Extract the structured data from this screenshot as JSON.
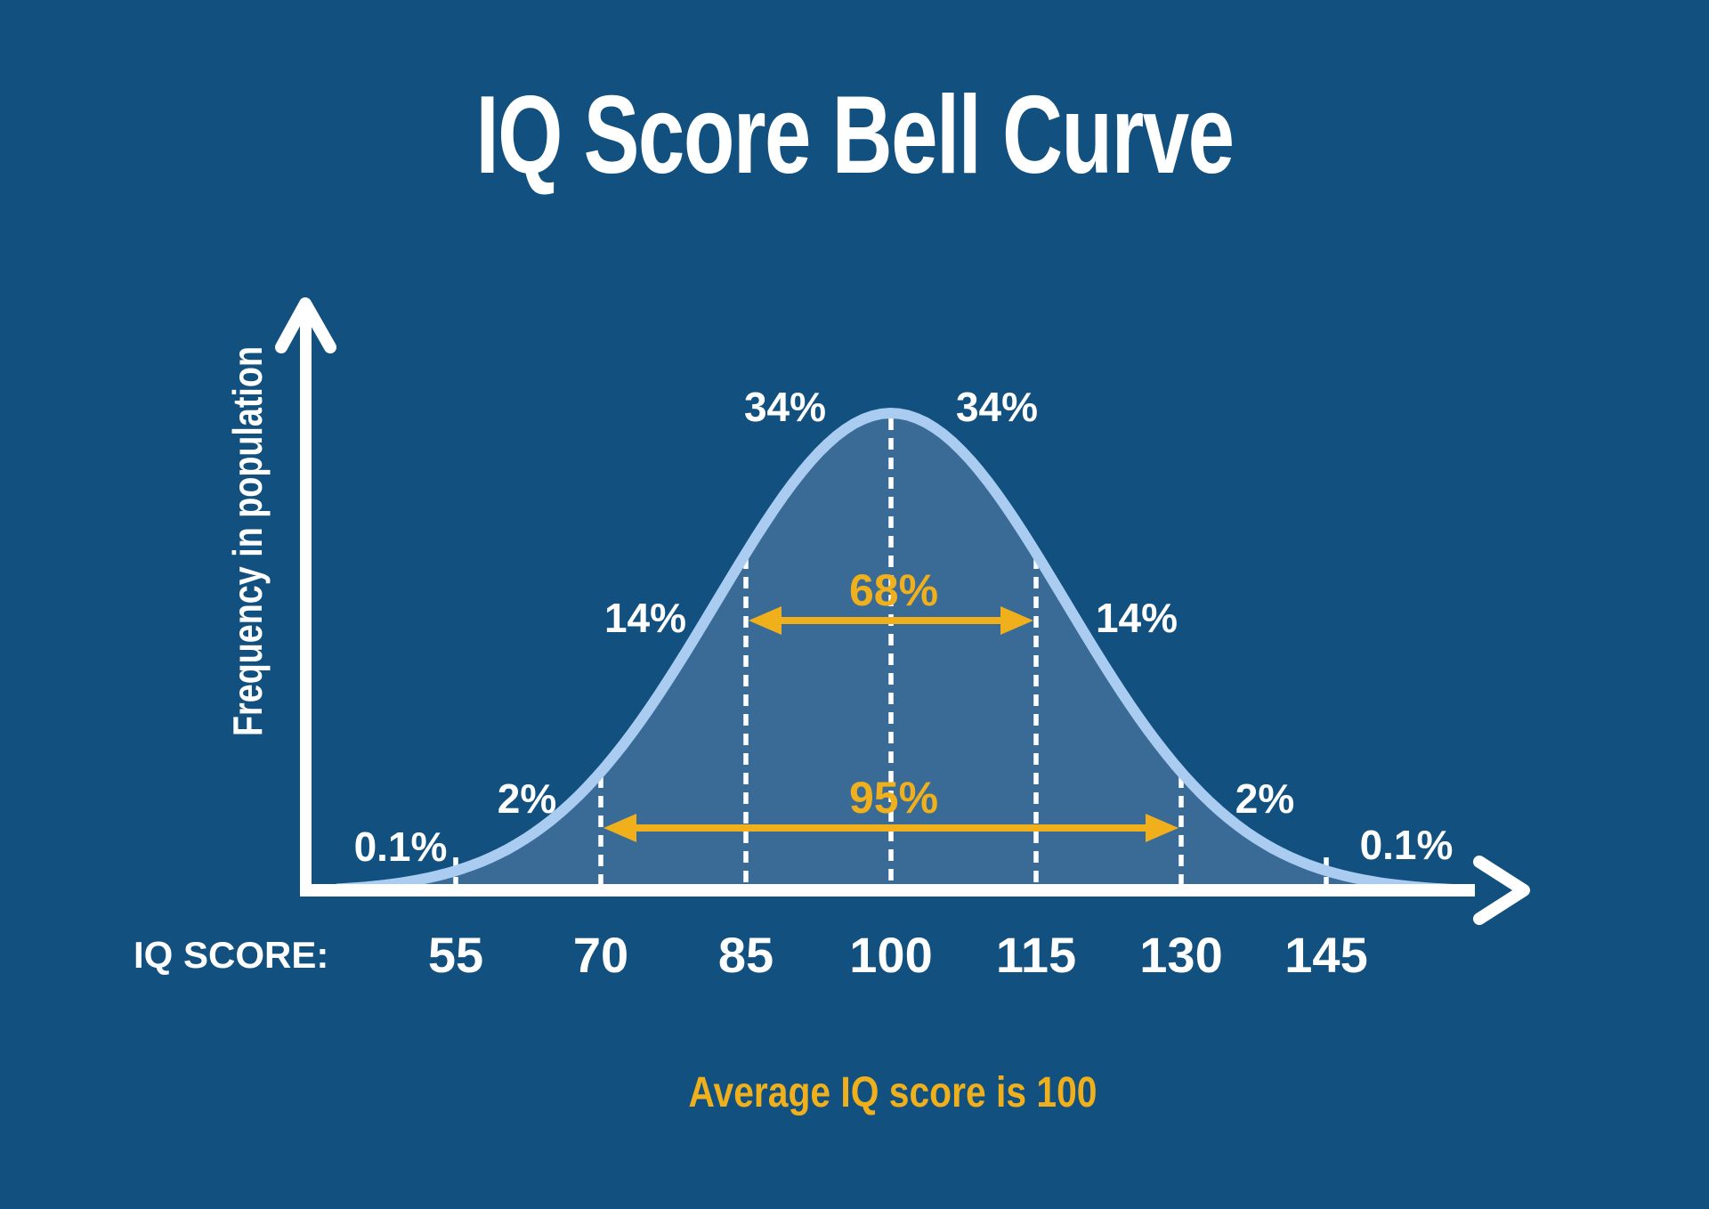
{
  "title": "IQ Score Bell Curve",
  "footnote": "Average IQ score is 100",
  "y_axis": {
    "label": "Frequency in population"
  },
  "x_axis": {
    "label": "IQ SCORE:",
    "ticks": [
      "55",
      "70",
      "85",
      "100",
      "115",
      "130",
      "145"
    ]
  },
  "colors": {
    "background": "#11507F",
    "curve_fill": "#3A6B97",
    "curve_stroke": "#A9CCF0",
    "accent_gold": "#EFB01C",
    "text": "#FFFFFF"
  },
  "chart_data": {
    "type": "area",
    "title": "IQ Score Bell Curve",
    "xlabel": "IQ SCORE",
    "ylabel": "Frequency in population",
    "distribution": "normal",
    "mean": 100,
    "std_dev": 15,
    "x_ticks": [
      55,
      70,
      85,
      100,
      115,
      130,
      145
    ],
    "grid": false,
    "segments": [
      {
        "range": "below 55",
        "percent": "0.1%"
      },
      {
        "range": "55-70",
        "percent": "2%"
      },
      {
        "range": "70-85",
        "percent": "14%"
      },
      {
        "range": "85-100",
        "percent": "34%"
      },
      {
        "range": "100-115",
        "percent": "34%"
      },
      {
        "range": "115-130",
        "percent": "14%"
      },
      {
        "range": "130-145",
        "percent": "2%"
      },
      {
        "range": "above 145",
        "percent": "0.1%"
      }
    ],
    "range_annotations": [
      {
        "label": "68%",
        "from": 85,
        "to": 115
      },
      {
        "label": "95%",
        "from": 70,
        "to": 130
      }
    ],
    "annotation": "Average IQ score is 100"
  }
}
